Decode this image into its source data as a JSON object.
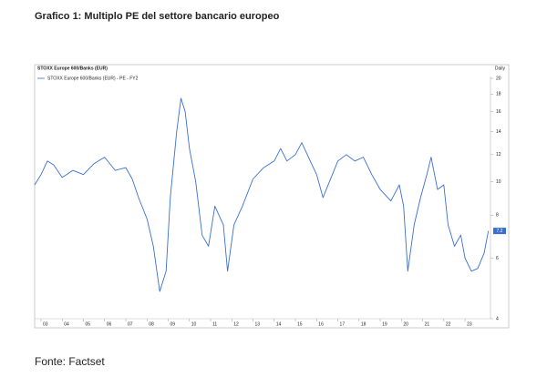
{
  "chart_data": {
    "type": "line",
    "title": "Grafico 1: Multiplo PE del settore bancario europeo",
    "subtitle": "STOXX Europe 600/Banks (EUR)",
    "frequency": "Daily",
    "source": "Fonte: Factset",
    "log_scale": true,
    "grid": false,
    "legend": "top-left",
    "x": [
      2002.7,
      2003.0,
      2003.3,
      2003.6,
      2004.0,
      2004.5,
      2005.0,
      2005.5,
      2006.0,
      2006.5,
      2007.0,
      2007.3,
      2007.6,
      2008.0,
      2008.3,
      2008.6,
      2008.9,
      2009.1,
      2009.4,
      2009.6,
      2009.8,
      2010.0,
      2010.3,
      2010.6,
      2010.9,
      2011.2,
      2011.6,
      2011.8,
      2012.1,
      2012.5,
      2013.0,
      2013.5,
      2014.0,
      2014.3,
      2014.6,
      2015.0,
      2015.3,
      2015.7,
      2016.0,
      2016.3,
      2016.6,
      2017.0,
      2017.4,
      2017.8,
      2018.2,
      2018.6,
      2019.0,
      2019.5,
      2019.9,
      2020.1,
      2020.3,
      2020.6,
      2020.9,
      2021.2,
      2021.4,
      2021.7,
      2022.0,
      2022.2,
      2022.5,
      2022.8,
      2023.0,
      2023.3,
      2023.6,
      2023.9,
      2024.1
    ],
    "series": [
      {
        "name": "STOXX Europe 600/Banks (EUR) - PE - FY2",
        "color": "#3a6fd0",
        "values": [
          9.8,
          10.5,
          11.5,
          11.2,
          10.3,
          10.8,
          10.5,
          11.3,
          11.8,
          10.8,
          11.0,
          10.2,
          9.0,
          7.8,
          6.5,
          4.8,
          5.5,
          9.0,
          14.0,
          17.5,
          16.0,
          12.5,
          10.0,
          7.0,
          6.5,
          8.5,
          7.5,
          5.5,
          7.5,
          8.5,
          10.2,
          11.0,
          11.5,
          12.5,
          11.5,
          12.0,
          13.0,
          11.5,
          10.5,
          9.0,
          10.0,
          11.5,
          12.0,
          11.5,
          11.8,
          10.5,
          9.5,
          8.8,
          9.8,
          8.5,
          5.5,
          7.5,
          9.0,
          10.5,
          11.8,
          9.5,
          9.8,
          7.5,
          6.5,
          7.0,
          6.0,
          5.5,
          5.6,
          6.2,
          7.2
        ]
      }
    ],
    "xlim": [
      2002.7,
      2024.2
    ],
    "xticks": [
      {
        "value": 2003,
        "label": "03"
      },
      {
        "value": 2004,
        "label": "04"
      },
      {
        "value": 2005,
        "label": "05"
      },
      {
        "value": 2006,
        "label": "06"
      },
      {
        "value": 2007,
        "label": "07"
      },
      {
        "value": 2008,
        "label": "08"
      },
      {
        "value": 2009,
        "label": "09"
      },
      {
        "value": 2010,
        "label": "10"
      },
      {
        "value": 2011,
        "label": "11"
      },
      {
        "value": 2012,
        "label": "12"
      },
      {
        "value": 2013,
        "label": "13"
      },
      {
        "value": 2014,
        "label": "14"
      },
      {
        "value": 2015,
        "label": "15"
      },
      {
        "value": 2016,
        "label": "16"
      },
      {
        "value": 2017,
        "label": "17"
      },
      {
        "value": 2018,
        "label": "18"
      },
      {
        "value": 2019,
        "label": "19"
      },
      {
        "value": 2020,
        "label": "20"
      },
      {
        "value": 2021,
        "label": "21"
      },
      {
        "value": 2022,
        "label": "22"
      },
      {
        "value": 2023,
        "label": "23"
      }
    ],
    "ylim": [
      4,
      21
    ],
    "yticks": [
      4,
      6,
      8,
      10,
      12,
      14,
      16,
      18,
      20
    ]
  }
}
